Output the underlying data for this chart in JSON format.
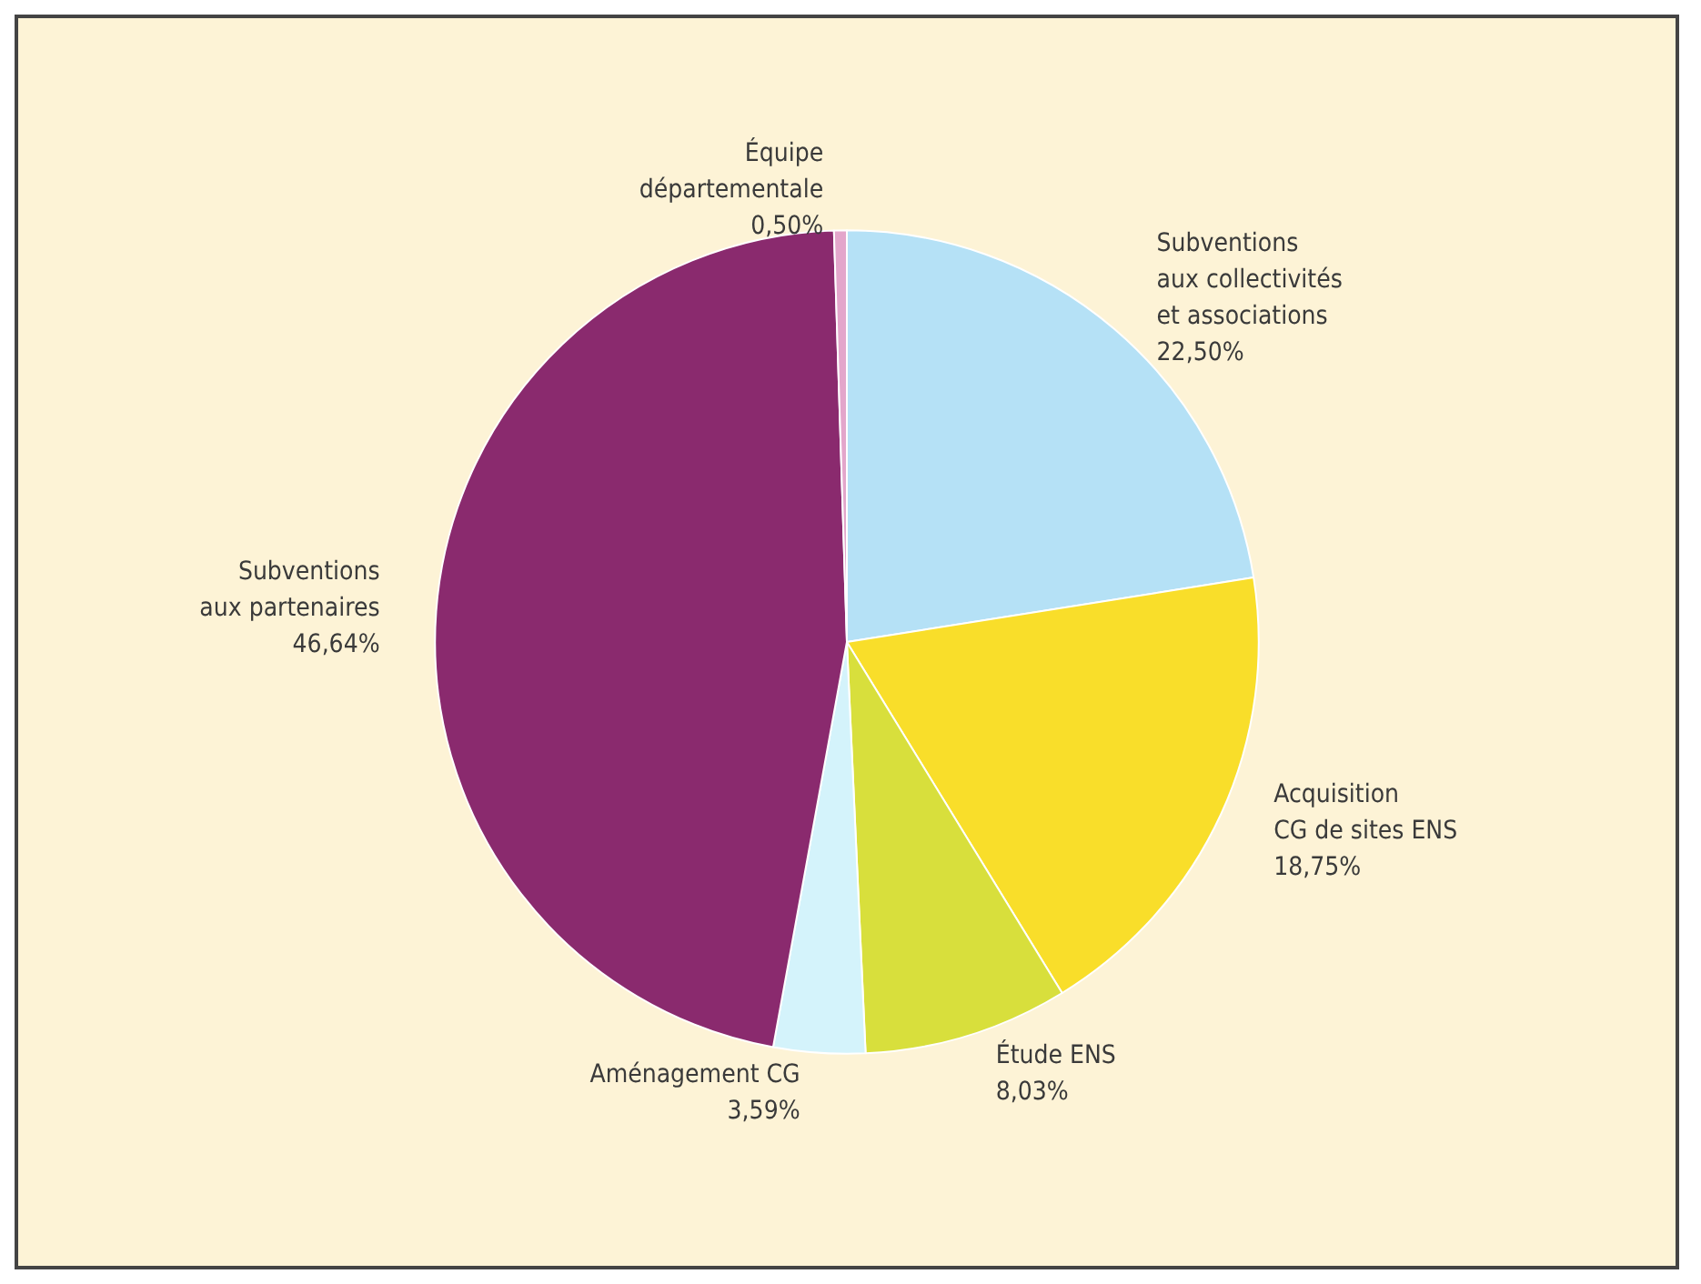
{
  "chart_data": {
    "type": "pie",
    "categories": [
      "Subventions\naux collectivités\net associations",
      "Acquisition\nCG de sites ENS",
      "Étude ENS",
      "Aménagement CG",
      "Subventions\naux partenaires",
      "Équipe\ndépartementale"
    ],
    "values": [
      22.5,
      18.75,
      8.03,
      3.59,
      46.64,
      0.5
    ],
    "value_labels": [
      "22,50%",
      "18,75%",
      "8,03%",
      "3,59%",
      "46,64%",
      "0,50%"
    ],
    "colors": [
      "#b5e1f6",
      "#f9de2a",
      "#d8df3c",
      "#d4f3fb",
      "#8a2a6e",
      "#e3a6cb"
    ]
  }
}
